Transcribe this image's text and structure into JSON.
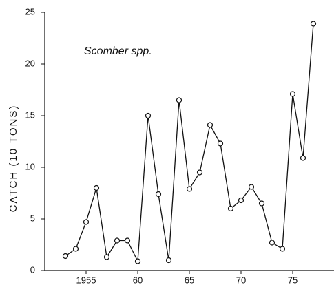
{
  "chart_data": {
    "type": "line",
    "title": "Scomber spp.",
    "y_label": "CATCH (10 TONS)",
    "x": [
      1953,
      1954,
      1955,
      1956,
      1957,
      1958,
      1959,
      1960,
      1961,
      1962,
      1963,
      1964,
      1965,
      1966,
      1967,
      1968,
      1969,
      1970,
      1971,
      1972,
      1973,
      1974,
      1975,
      1976,
      1977
    ],
    "series": [
      {
        "color": "#111111",
        "values": [
          1.4,
          2.1,
          4.7,
          8.0,
          1.3,
          2.9,
          2.9,
          0.9,
          15.0,
          7.4,
          1.0,
          16.5,
          7.9,
          9.5,
          14.1,
          12.3,
          6.0,
          6.8,
          8.1,
          6.5,
          2.7,
          2.1,
          17.1,
          10.9,
          23.9
        ]
      }
    ],
    "xlim": [
      1951,
      1979
    ],
    "xticks": [
      1955,
      {
        "value": 1960,
        "label": "60"
      },
      {
        "value": 1965,
        "label": "65"
      },
      {
        "value": 1970,
        "label": "70"
      },
      {
        "value": 1975,
        "label": "75"
      }
    ],
    "ylim": [
      0,
      25
    ],
    "yticks": [
      0,
      5,
      10,
      15,
      20,
      25
    ]
  }
}
